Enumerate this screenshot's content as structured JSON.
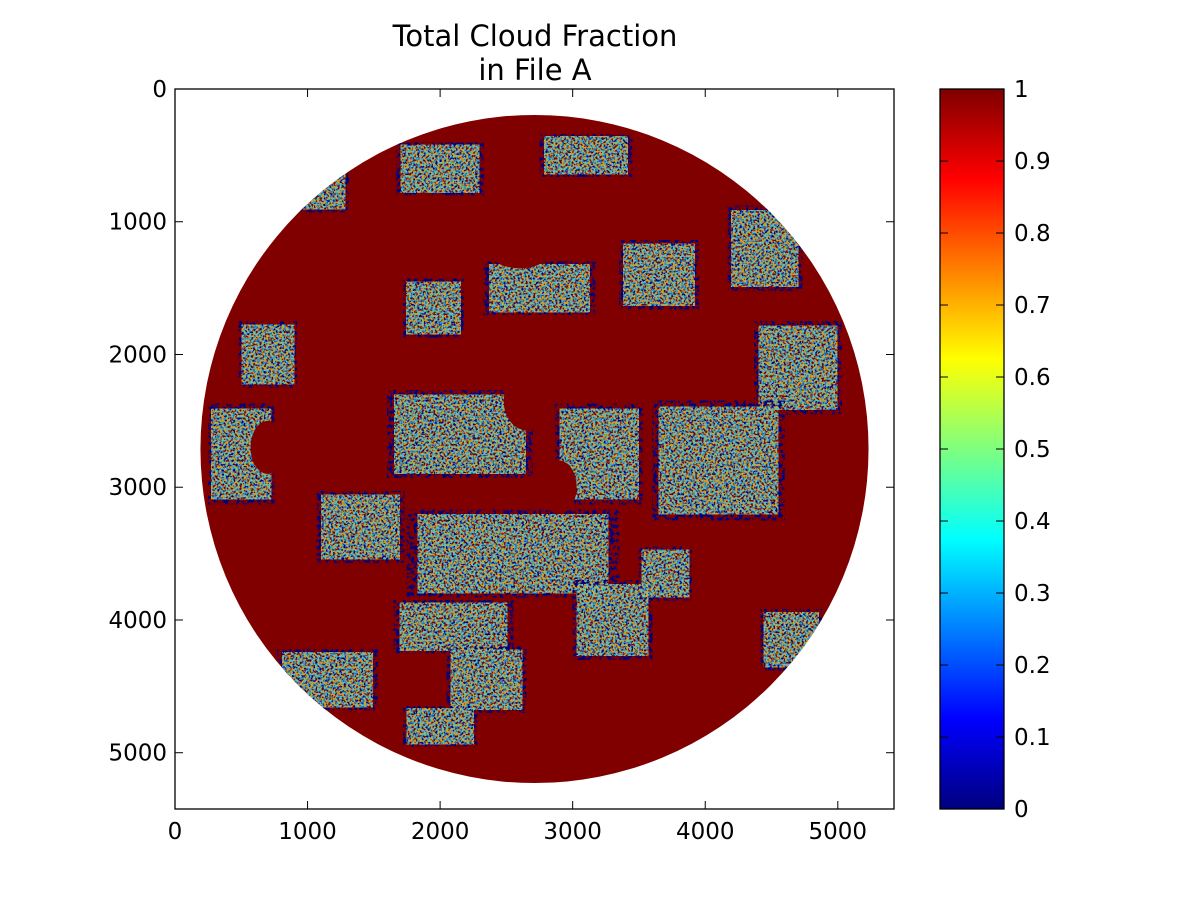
{
  "chart_data": {
    "type": "heatmap",
    "title_lines": [
      "Total Cloud Fraction",
      "in File A"
    ],
    "xlabel": "",
    "ylabel": "",
    "xlim": [
      0,
      5424
    ],
    "ylim": [
      5424,
      0
    ],
    "x_ticks": [
      0,
      1000,
      2000,
      3000,
      4000,
      5000
    ],
    "y_ticks": [
      0,
      1000,
      2000,
      3000,
      4000,
      5000
    ],
    "disk": {
      "center_x": 2712,
      "center_y": 2712,
      "radius": 2520
    },
    "colorbar": {
      "colormap": "jet",
      "range": [
        0,
        1
      ],
      "ticks": [
        0,
        0.1,
        0.2,
        0.3,
        0.4,
        0.5,
        0.6,
        0.7,
        0.8,
        0.9,
        1
      ],
      "tick_labels": [
        "0",
        "0.1",
        "0.2",
        "0.3",
        "0.4",
        "0.5",
        "0.6",
        "0.7",
        "0.8",
        "0.9",
        "1"
      ]
    },
    "colors": {
      "cloudy": "#800000",
      "clear": "#00007f",
      "jet_stops": [
        "#00007f",
        "#0000ff",
        "#007fff",
        "#00ffff",
        "#7fff7f",
        "#ffff00",
        "#ff7f00",
        "#ff0000",
        "#7f0000"
      ]
    },
    "clear_regions": [
      {
        "x": 1050,
        "y": 700,
        "rx": 260,
        "ry": 230
      },
      {
        "x": 2000,
        "y": 600,
        "rx": 330,
        "ry": 200
      },
      {
        "x": 3100,
        "y": 500,
        "rx": 350,
        "ry": 160
      },
      {
        "x": 3650,
        "y": 1400,
        "rx": 300,
        "ry": 260
      },
      {
        "x": 4450,
        "y": 1200,
        "rx": 280,
        "ry": 320
      },
      {
        "x": 4700,
        "y": 2100,
        "rx": 330,
        "ry": 350
      },
      {
        "x": 2750,
        "y": 1500,
        "rx": 420,
        "ry": 200
      },
      {
        "x": 1950,
        "y": 1650,
        "rx": 230,
        "ry": 220
      },
      {
        "x": 2150,
        "y": 2600,
        "rx": 550,
        "ry": 330
      },
      {
        "x": 3200,
        "y": 2750,
        "rx": 330,
        "ry": 380
      },
      {
        "x": 4100,
        "y": 2800,
        "rx": 500,
        "ry": 450
      },
      {
        "x": 2550,
        "y": 3500,
        "rx": 800,
        "ry": 330
      },
      {
        "x": 3300,
        "y": 4000,
        "rx": 300,
        "ry": 300
      },
      {
        "x": 2100,
        "y": 4050,
        "rx": 450,
        "ry": 200
      },
      {
        "x": 1400,
        "y": 3300,
        "rx": 330,
        "ry": 270
      },
      {
        "x": 500,
        "y": 2750,
        "rx": 250,
        "ry": 380
      },
      {
        "x": 700,
        "y": 2000,
        "rx": 220,
        "ry": 250
      },
      {
        "x": 1150,
        "y": 4450,
        "rx": 380,
        "ry": 230
      },
      {
        "x": 2350,
        "y": 4450,
        "rx": 300,
        "ry": 250
      },
      {
        "x": 4650,
        "y": 4150,
        "rx": 230,
        "ry": 230
      },
      {
        "x": 2000,
        "y": 4800,
        "rx": 280,
        "ry": 150
      },
      {
        "x": 3700,
        "y": 3650,
        "rx": 200,
        "ry": 200
      }
    ],
    "cloudy_regions": [
      {
        "x": 2650,
        "y": 2350,
        "rx": 170,
        "ry": 220
      },
      {
        "x": 2900,
        "y": 3000,
        "rx": 130,
        "ry": 200
      },
      {
        "x": 700,
        "y": 2700,
        "rx": 130,
        "ry": 200
      },
      {
        "x": 2600,
        "y": 1200,
        "rx": 250,
        "ry": 150
      },
      {
        "x": 4050,
        "y": 1800,
        "rx": 150,
        "ry": 120
      }
    ]
  }
}
